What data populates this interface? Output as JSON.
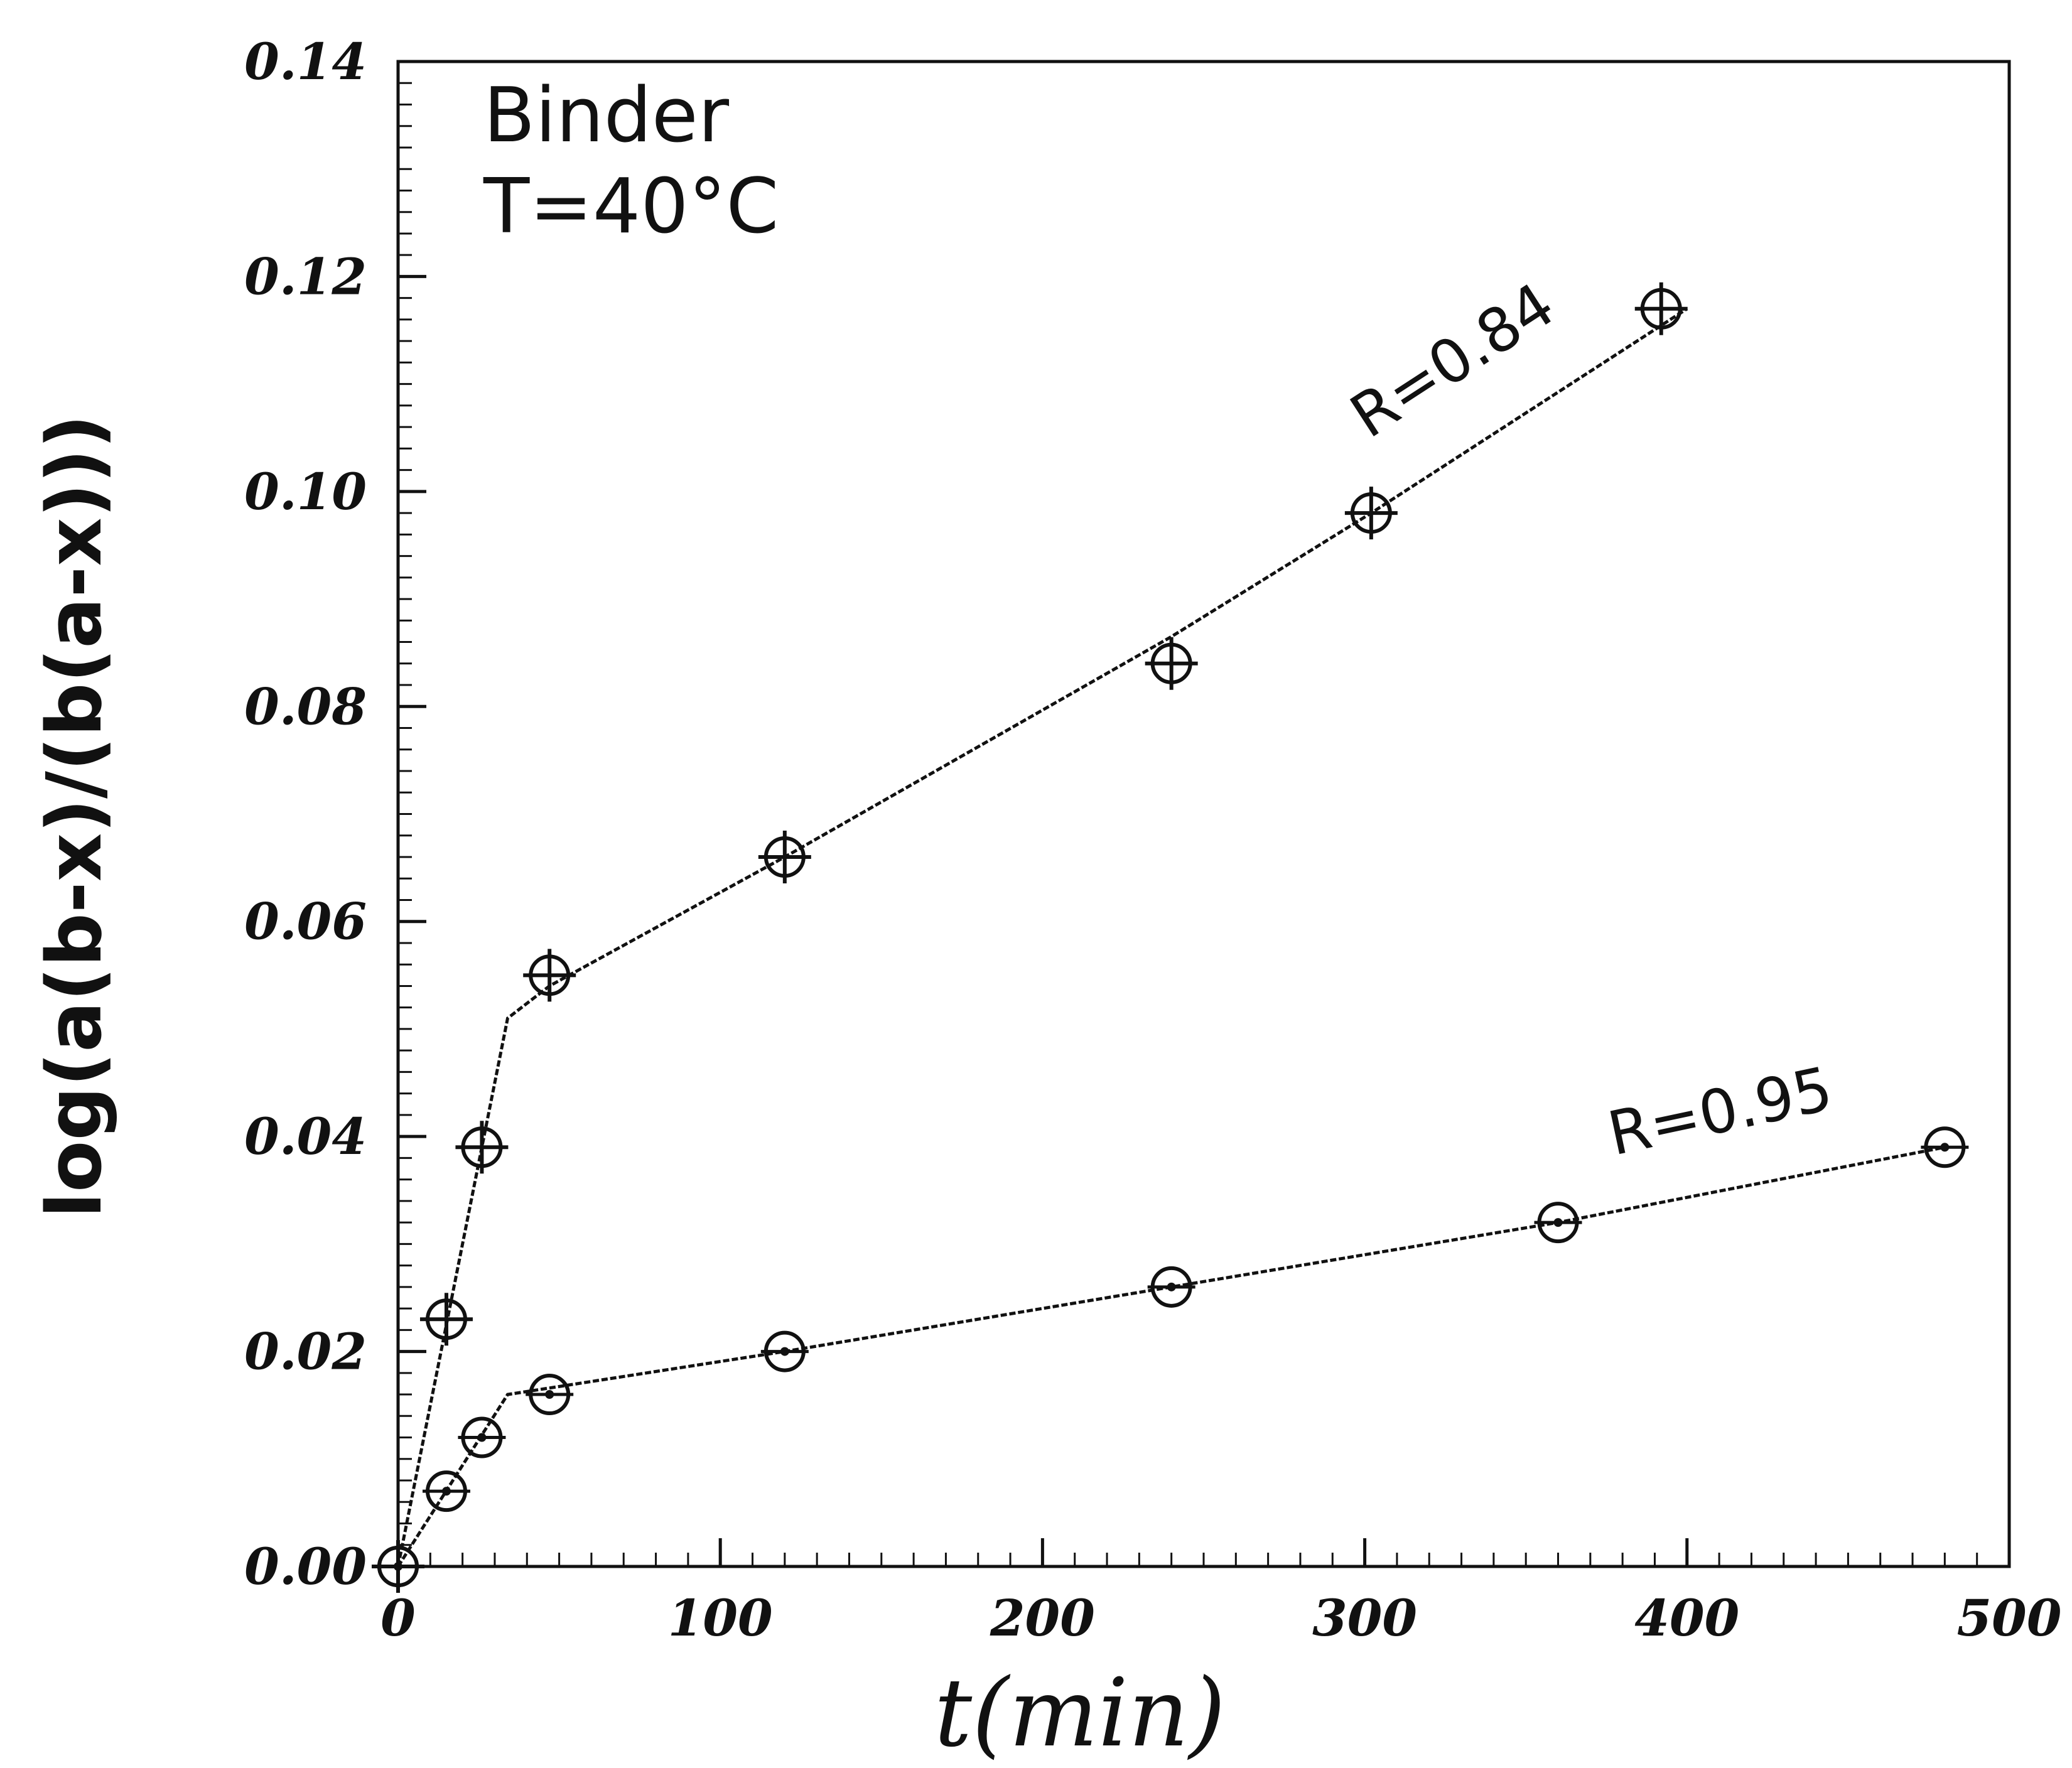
{
  "chart_data": {
    "type": "line",
    "title": "",
    "annotation": {
      "line1": "Binder",
      "line2": "T=40°C"
    },
    "xlabel": "t(min)",
    "ylabel": "log(a(b-x)/(b(a-x)))",
    "xlim": [
      0,
      500
    ],
    "ylim": [
      0.0,
      0.14
    ],
    "xticks": [
      0,
      100,
      200,
      300,
      400,
      500
    ],
    "xtick_labels": [
      "0",
      "100",
      "200",
      "300",
      "400",
      "500"
    ],
    "yticks": [
      0.0,
      0.02,
      0.04,
      0.06,
      0.08,
      0.1,
      0.12,
      0.14
    ],
    "ytick_labels": [
      "0.00",
      "0.02",
      "0.04",
      "0.06",
      "0.08",
      "0.10",
      "0.12",
      "0.14"
    ],
    "grid": false,
    "series": [
      {
        "marker": "circle-plus",
        "points": [
          [
            0,
            0.0
          ],
          [
            15,
            0.023
          ],
          [
            26,
            0.039
          ],
          [
            47,
            0.055
          ],
          [
            120,
            0.066
          ],
          [
            240,
            0.084
          ],
          [
            302,
            0.098
          ],
          [
            392,
            0.117
          ]
        ],
        "fit_line": [
          [
            0,
            0.0
          ],
          [
            34,
            0.051
          ],
          [
            47,
            0.054
          ],
          [
            120,
            0.066
          ],
          [
            240,
            0.0865
          ],
          [
            302,
            0.098
          ],
          [
            400,
            0.117
          ]
        ],
        "label": "R=0.84"
      },
      {
        "marker": "circle-dot",
        "points": [
          [
            0,
            0.0
          ],
          [
            15,
            0.007
          ],
          [
            26,
            0.012
          ],
          [
            47,
            0.016
          ],
          [
            120,
            0.02
          ],
          [
            240,
            0.026
          ],
          [
            360,
            0.032
          ],
          [
            480,
            0.039
          ]
        ],
        "fit_line": [
          [
            0,
            0.0
          ],
          [
            34,
            0.016
          ],
          [
            120,
            0.02
          ],
          [
            240,
            0.026
          ],
          [
            360,
            0.032
          ],
          [
            480,
            0.039
          ]
        ],
        "label": "R=0.95"
      }
    ]
  }
}
